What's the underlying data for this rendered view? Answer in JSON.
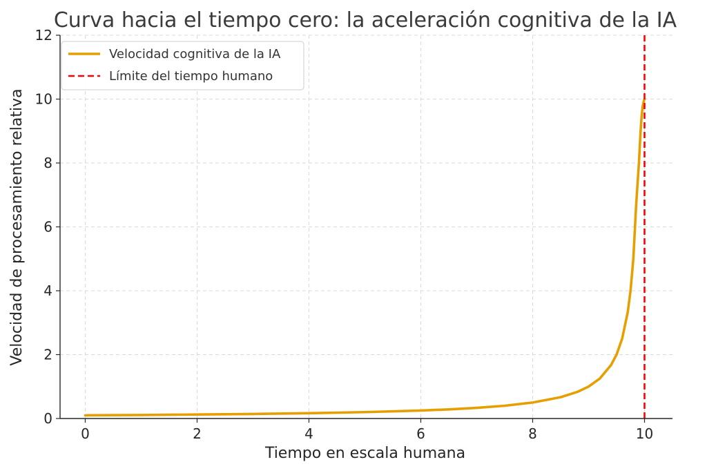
{
  "chart_data": {
    "type": "line",
    "title": "Curva hacia el tiempo cero: la aceleración cognitiva de la IA",
    "xlabel": "Tiempo en escala humana",
    "ylabel": "Velocidad de procesamiento relativa",
    "xlim": [
      -0.45,
      10.5
    ],
    "ylim": [
      0,
      12
    ],
    "xticks": [
      0,
      2,
      4,
      6,
      8,
      10
    ],
    "xtick_labels": [
      "0",
      "2",
      "4",
      "6",
      "8",
      "10"
    ],
    "yticks": [
      0,
      2,
      4,
      6,
      8,
      10,
      12
    ],
    "ytick_labels": [
      "0",
      "2",
      "4",
      "6",
      "8",
      "10",
      "12"
    ],
    "grid": true,
    "legend_position": "top-left",
    "series": [
      {
        "name": "Velocidad cognitiva de la IA",
        "color": "#E69F00",
        "style": "solid",
        "x": [
          0,
          1,
          2,
          3,
          4,
          5,
          6,
          6.5,
          7,
          7.5,
          8,
          8.5,
          8.8,
          9,
          9.2,
          9.4,
          9.5,
          9.6,
          9.7,
          9.75,
          9.8,
          9.85,
          9.9,
          9.93,
          9.95,
          9.97,
          9.99,
          10.0
        ],
        "y": [
          0.1,
          0.11,
          0.125,
          0.143,
          0.167,
          0.2,
          0.25,
          0.286,
          0.333,
          0.4,
          0.5,
          0.667,
          0.833,
          1.0,
          1.25,
          1.67,
          2.0,
          2.5,
          3.33,
          4.0,
          5.0,
          6.67,
          8.0,
          9.0,
          9.5,
          9.8,
          9.95,
          10.0
        ]
      },
      {
        "name": "Límite del tiempo humano",
        "color": "#FF0000",
        "style": "dashed",
        "x": [
          10,
          10
        ],
        "y": [
          0,
          12
        ]
      }
    ]
  }
}
